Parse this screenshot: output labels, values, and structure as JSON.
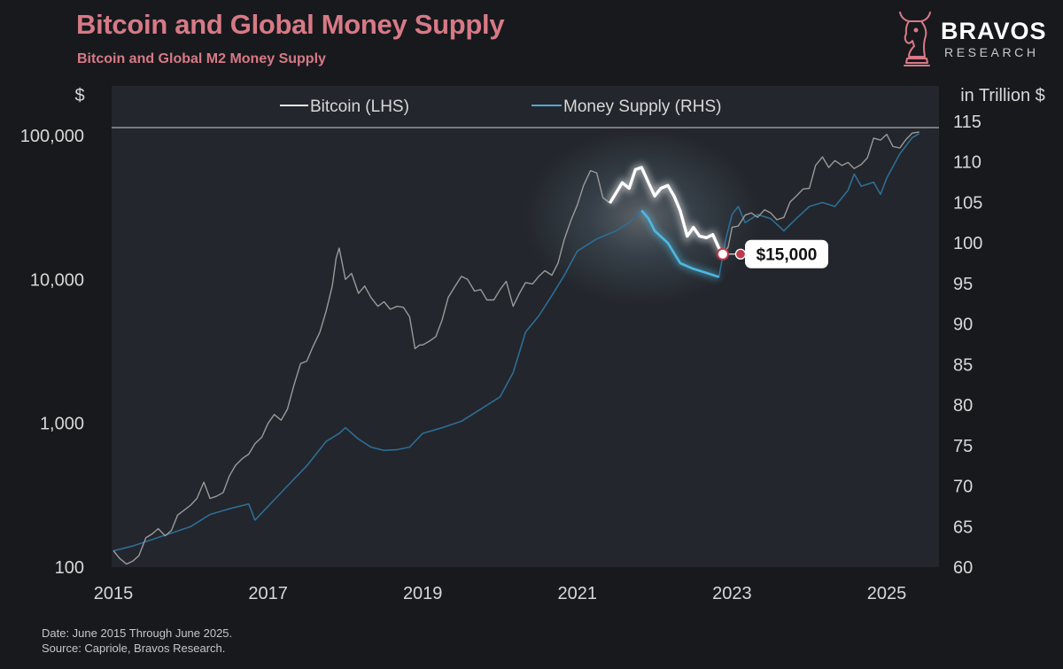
{
  "title": "Bitcoin and Global Money Supply",
  "subtitle": "Bitcoin and Global M2 Money Supply",
  "logo": {
    "word": "BRAVOS",
    "sub": "RESEARCH",
    "icon": "bull-chess-knight-icon"
  },
  "footer": {
    "date_note": "Date: June 2015 Through June 2025.",
    "source_note": "Source: Capriole, Bravos Research."
  },
  "colors": {
    "background": "#18191d",
    "plot_background": "#23262c",
    "accent": "#d77a86",
    "bitcoin": "#9a9a9a",
    "bitcoin_highlight": "#ffffff",
    "money_supply": "#2d6e96",
    "money_supply_highlight": "#4fb8e0",
    "marker": "#c0394b"
  },
  "chart_data": {
    "type": "line",
    "title": "Bitcoin and Global Money Supply",
    "subtitle": "Bitcoin and Global M2 Money Supply",
    "legend": {
      "placement": "top-center"
    },
    "x_axis": {
      "ticks": [
        2015,
        2017,
        2019,
        2021,
        2023,
        2025
      ],
      "range": [
        2015,
        2025.6
      ]
    },
    "y_axis_left": {
      "label": "$",
      "scale": "log",
      "ticks": [
        100,
        1000,
        10000,
        100000
      ],
      "tick_labels": [
        "100",
        "1,000",
        "10,000",
        "100,000"
      ],
      "range": [
        100,
        100000
      ]
    },
    "y_axis_right": {
      "label": "in Trillion $",
      "scale": "linear",
      "ticks": [
        60,
        65,
        70,
        75,
        80,
        85,
        90,
        95,
        100,
        105,
        110,
        115
      ],
      "range": [
        60,
        115
      ]
    },
    "grid": false,
    "series": [
      {
        "name": "Bitcoin (LHS)",
        "axis": "left",
        "points": [
          [
            2015.0,
            130
          ],
          [
            2015.08,
            115
          ],
          [
            2015.17,
            105
          ],
          [
            2015.25,
            110
          ],
          [
            2015.33,
            120
          ],
          [
            2015.42,
            160
          ],
          [
            2015.5,
            170
          ],
          [
            2015.58,
            185
          ],
          [
            2015.67,
            165
          ],
          [
            2015.75,
            180
          ],
          [
            2015.83,
            230
          ],
          [
            2015.92,
            250
          ],
          [
            2016.0,
            270
          ],
          [
            2016.08,
            300
          ],
          [
            2016.17,
            390
          ],
          [
            2016.25,
            300
          ],
          [
            2016.33,
            310
          ],
          [
            2016.42,
            330
          ],
          [
            2016.5,
            430
          ],
          [
            2016.58,
            510
          ],
          [
            2016.67,
            570
          ],
          [
            2016.75,
            610
          ],
          [
            2016.83,
            720
          ],
          [
            2016.92,
            800
          ],
          [
            2017.0,
            1000
          ],
          [
            2017.08,
            1150
          ],
          [
            2017.17,
            1050
          ],
          [
            2017.25,
            1250
          ],
          [
            2017.33,
            1800
          ],
          [
            2017.42,
            2600
          ],
          [
            2017.5,
            2700
          ],
          [
            2017.58,
            3400
          ],
          [
            2017.67,
            4300
          ],
          [
            2017.75,
            6000
          ],
          [
            2017.83,
            9000
          ],
          [
            2017.88,
            14000
          ],
          [
            2017.92,
            16500
          ],
          [
            2018.0,
            10000
          ],
          [
            2018.08,
            11000
          ],
          [
            2018.17,
            8000
          ],
          [
            2018.25,
            9000
          ],
          [
            2018.33,
            7500
          ],
          [
            2018.42,
            6500
          ],
          [
            2018.5,
            7000
          ],
          [
            2018.58,
            6200
          ],
          [
            2018.67,
            6500
          ],
          [
            2018.75,
            6400
          ],
          [
            2018.83,
            5500
          ],
          [
            2018.9,
            3300
          ],
          [
            2018.96,
            3500
          ],
          [
            2019.0,
            3500
          ],
          [
            2019.08,
            3700
          ],
          [
            2019.17,
            4000
          ],
          [
            2019.25,
            5200
          ],
          [
            2019.33,
            7500
          ],
          [
            2019.42,
            9000
          ],
          [
            2019.5,
            10500
          ],
          [
            2019.58,
            10000
          ],
          [
            2019.67,
            8300
          ],
          [
            2019.75,
            8500
          ],
          [
            2019.83,
            7200
          ],
          [
            2019.92,
            7200
          ],
          [
            2020.0,
            8500
          ],
          [
            2020.08,
            9700
          ],
          [
            2020.17,
            6500
          ],
          [
            2020.25,
            8000
          ],
          [
            2020.33,
            9500
          ],
          [
            2020.42,
            9300
          ],
          [
            2020.5,
            10500
          ],
          [
            2020.58,
            11500
          ],
          [
            2020.67,
            10700
          ],
          [
            2020.75,
            13000
          ],
          [
            2020.83,
            19000
          ],
          [
            2020.92,
            26000
          ],
          [
            2021.0,
            33000
          ],
          [
            2021.08,
            45000
          ],
          [
            2021.17,
            57000
          ],
          [
            2021.25,
            55000
          ],
          [
            2021.33,
            37000
          ],
          [
            2021.42,
            34000
          ],
          [
            2021.5,
            40000
          ],
          [
            2021.58,
            47000
          ],
          [
            2021.67,
            43000
          ],
          [
            2021.75,
            58000
          ],
          [
            2021.83,
            60000
          ],
          [
            2021.92,
            47000
          ],
          [
            2022.0,
            38000
          ],
          [
            2022.08,
            43000
          ],
          [
            2022.17,
            45000
          ],
          [
            2022.25,
            38000
          ],
          [
            2022.33,
            30000
          ],
          [
            2022.42,
            20000
          ],
          [
            2022.5,
            23000
          ],
          [
            2022.58,
            20000
          ],
          [
            2022.67,
            19500
          ],
          [
            2022.75,
            20500
          ],
          [
            2022.83,
            16500
          ],
          [
            2022.88,
            15000
          ],
          [
            2022.95,
            16800
          ],
          [
            2023.0,
            23000
          ],
          [
            2023.08,
            23500
          ],
          [
            2023.17,
            28000
          ],
          [
            2023.25,
            29000
          ],
          [
            2023.33,
            27000
          ],
          [
            2023.42,
            30500
          ],
          [
            2023.5,
            29000
          ],
          [
            2023.58,
            26000
          ],
          [
            2023.67,
            27000
          ],
          [
            2023.75,
            34500
          ],
          [
            2023.83,
            38000
          ],
          [
            2023.92,
            42500
          ],
          [
            2024.0,
            43000
          ],
          [
            2024.08,
            62000
          ],
          [
            2024.17,
            71000
          ],
          [
            2024.25,
            60000
          ],
          [
            2024.33,
            67000
          ],
          [
            2024.42,
            62000
          ],
          [
            2024.5,
            65000
          ],
          [
            2024.58,
            59000
          ],
          [
            2024.67,
            63000
          ],
          [
            2024.75,
            70000
          ],
          [
            2024.83,
            96000
          ],
          [
            2024.92,
            93000
          ],
          [
            2025.0,
            102000
          ],
          [
            2025.08,
            84000
          ],
          [
            2025.17,
            82000
          ],
          [
            2025.25,
            94000
          ],
          [
            2025.33,
            104000
          ],
          [
            2025.42,
            106000
          ]
        ]
      },
      {
        "name": "Money Supply (RHS)",
        "axis": "right",
        "points": [
          [
            2015.0,
            62.0
          ],
          [
            2015.25,
            62.6
          ],
          [
            2015.5,
            63.4
          ],
          [
            2015.75,
            64.2
          ],
          [
            2016.0,
            65.0
          ],
          [
            2016.25,
            66.5
          ],
          [
            2016.5,
            67.2
          ],
          [
            2016.75,
            67.8
          ],
          [
            2016.83,
            65.8
          ],
          [
            2017.0,
            67.5
          ],
          [
            2017.25,
            70.0
          ],
          [
            2017.5,
            72.5
          ],
          [
            2017.75,
            75.5
          ],
          [
            2017.92,
            76.5
          ],
          [
            2018.0,
            77.2
          ],
          [
            2018.17,
            75.8
          ],
          [
            2018.33,
            74.8
          ],
          [
            2018.5,
            74.4
          ],
          [
            2018.67,
            74.5
          ],
          [
            2018.83,
            74.8
          ],
          [
            2019.0,
            76.5
          ],
          [
            2019.25,
            77.2
          ],
          [
            2019.5,
            78.0
          ],
          [
            2019.75,
            79.5
          ],
          [
            2020.0,
            81.0
          ],
          [
            2020.17,
            84.0
          ],
          [
            2020.33,
            89.0
          ],
          [
            2020.5,
            91.0
          ],
          [
            2020.67,
            93.5
          ],
          [
            2020.83,
            96.0
          ],
          [
            2021.0,
            99.0
          ],
          [
            2021.25,
            100.5
          ],
          [
            2021.5,
            101.5
          ],
          [
            2021.67,
            102.5
          ],
          [
            2021.83,
            104.0
          ],
          [
            2021.92,
            103.0
          ],
          [
            2022.0,
            101.5
          ],
          [
            2022.17,
            100.0
          ],
          [
            2022.33,
            97.5
          ],
          [
            2022.5,
            96.8
          ],
          [
            2022.67,
            96.3
          ],
          [
            2022.83,
            95.8
          ],
          [
            2022.92,
            100.5
          ],
          [
            2023.0,
            103.5
          ],
          [
            2023.08,
            104.5
          ],
          [
            2023.17,
            102.5
          ],
          [
            2023.33,
            103.5
          ],
          [
            2023.5,
            103.0
          ],
          [
            2023.67,
            101.5
          ],
          [
            2023.83,
            103.0
          ],
          [
            2024.0,
            104.5
          ],
          [
            2024.17,
            105.0
          ],
          [
            2024.33,
            104.5
          ],
          [
            2024.5,
            106.5
          ],
          [
            2024.58,
            108.5
          ],
          [
            2024.67,
            107.0
          ],
          [
            2024.83,
            107.5
          ],
          [
            2024.92,
            106.0
          ],
          [
            2025.0,
            108.0
          ],
          [
            2025.17,
            111.0
          ],
          [
            2025.33,
            113.0
          ],
          [
            2025.42,
            113.5
          ]
        ]
      }
    ],
    "highlight_range": [
      2021.4,
      2022.88
    ],
    "annotations": [
      {
        "x": 2022.88,
        "y": 15000,
        "label": "$15,000"
      }
    ]
  }
}
